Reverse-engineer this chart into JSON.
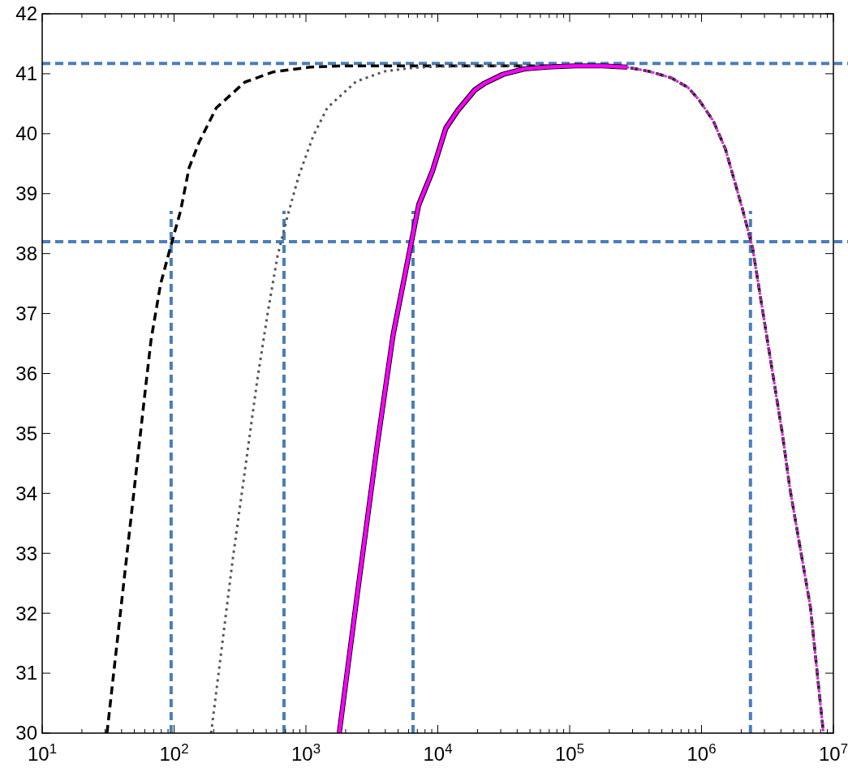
{
  "chart_data": {
    "type": "line",
    "log": "x",
    "grid": false,
    "marker": "none",
    "xlim": [
      10,
      10000000
    ],
    "ylim": [
      30,
      42
    ],
    "xticks": [
      {
        "value": 10,
        "label": "10$^{1}$"
      },
      {
        "value": 20,
        "label": null
      },
      {
        "value": 30,
        "label": null
      },
      {
        "value": 40,
        "label": null
      },
      {
        "value": 50,
        "label": null
      },
      {
        "value": 60,
        "label": null
      },
      {
        "value": 70,
        "label": null
      },
      {
        "value": 80,
        "label": null
      },
      {
        "value": 90,
        "label": null
      },
      {
        "value": 100,
        "label": "10$^{2}$"
      },
      {
        "value": 200,
        "label": null
      },
      {
        "value": 300,
        "label": null
      },
      {
        "value": 400,
        "label": null
      },
      {
        "value": 500,
        "label": null
      },
      {
        "value": 600,
        "label": null
      },
      {
        "value": 700,
        "label": null
      },
      {
        "value": 800,
        "label": null
      },
      {
        "value": 900,
        "label": null
      },
      {
        "value": 1000,
        "label": "10$^{3}$"
      },
      {
        "value": 2000,
        "label": null
      },
      {
        "value": 3000,
        "label": null
      },
      {
        "value": 4000,
        "label": null
      },
      {
        "value": 5000,
        "label": null
      },
      {
        "value": 6000,
        "label": null
      },
      {
        "value": 7000,
        "label": null
      },
      {
        "value": 8000,
        "label": null
      },
      {
        "value": 9000,
        "label": null
      },
      {
        "value": 10000,
        "label": "10$^{4}$"
      },
      {
        "value": 20000,
        "label": null
      },
      {
        "value": 30000,
        "label": null
      },
      {
        "value": 40000,
        "label": null
      },
      {
        "value": 50000,
        "label": null
      },
      {
        "value": 60000,
        "label": null
      },
      {
        "value": 70000,
        "label": null
      },
      {
        "value": 80000,
        "label": null
      },
      {
        "value": 90000,
        "label": null
      },
      {
        "value": 100000,
        "label": "10$^{5}$"
      },
      {
        "value": 200000,
        "label": null
      },
      {
        "value": 300000,
        "label": null
      },
      {
        "value": 400000,
        "label": null
      },
      {
        "value": 500000,
        "label": null
      },
      {
        "value": 600000,
        "label": null
      },
      {
        "value": 700000,
        "label": null
      },
      {
        "value": 800000,
        "label": null
      },
      {
        "value": 900000,
        "label": null
      },
      {
        "value": 1000000,
        "label": "10$^{6}$"
      },
      {
        "value": 2000000,
        "label": null
      },
      {
        "value": 3000000,
        "label": null
      },
      {
        "value": 4000000,
        "label": null
      },
      {
        "value": 5000000,
        "label": null
      },
      {
        "value": 6000000,
        "label": null
      },
      {
        "value": 7000000,
        "label": null
      },
      {
        "value": 8000000,
        "label": null
      },
      {
        "value": 9000000,
        "label": null
      },
      {
        "value": 10000000,
        "label": "10$^{7}$"
      }
    ],
    "yticks": [
      30,
      31,
      32,
      33,
      34,
      35,
      36,
      37,
      38,
      39,
      40,
      41,
      42
    ],
    "ref_lines": [
      {
        "axis": "y",
        "value": 41.17,
        "color": "#4a7ebb",
        "line_style": "dashed"
      },
      {
        "axis": "y",
        "value": 38.2,
        "color": "#4a7ebb",
        "line_style": "dashed"
      },
      {
        "axis": "x",
        "value": 95,
        "color": "#4a7ebb",
        "line_style": "dashed"
      },
      {
        "axis": "x",
        "value": 682,
        "color": "#4a7ebb",
        "line_style": "dashed"
      },
      {
        "axis": "x",
        "value": 6490,
        "color": "#4a7ebb",
        "line_style": "dashed"
      },
      {
        "axis": "x",
        "value": 2350000,
        "color": "#4a7ebb",
        "line_style": "dashed"
      }
    ],
    "series": [
      {
        "color": "#000000",
        "line_style": "dashed",
        "x": [
          31,
          44,
          61,
          67,
          79,
          94,
          112,
          130,
          155,
          209,
          344,
          566,
          1070,
          1860,
          10000,
          110000,
          180000,
          270000,
          400000,
          590000,
          790000,
          960000,
          1230000,
          1520000,
          2040000,
          2440000,
          4100000,
          4680000,
          6700000,
          8400000
        ],
        "values": [
          30,
          33,
          35.79,
          36.57,
          37.49,
          38.11,
          38.71,
          39.43,
          39.86,
          40.43,
          40.86,
          41.03,
          41.11,
          41.13,
          41.13,
          41.13,
          41.13,
          41.11,
          41.04,
          40.93,
          40.77,
          40.56,
          40.21,
          39.74,
          38.75,
          38.09,
          35,
          34.08,
          32.1,
          30
        ]
      },
      {
        "color": "#555555",
        "line_style": "dotted",
        "x": [
          191,
          279,
          427,
          513,
          609,
          724,
          881,
          1135,
          1450,
          2400,
          3940,
          6470,
          10000,
          30000,
          110000,
          180000,
          270000,
          400000,
          590000,
          790000,
          960000,
          1230000,
          1520000,
          2040000,
          2440000,
          4100000,
          4680000,
          6700000,
          8400000
        ],
        "values": [
          30,
          32.91,
          35.88,
          37.01,
          37.96,
          38.62,
          39.29,
          39.96,
          40.43,
          40.87,
          41.04,
          41.1,
          41.12,
          41.13,
          41.13,
          41.13,
          41.11,
          41.04,
          40.93,
          40.77,
          40.56,
          40.21,
          39.74,
          38.75,
          38.09,
          35,
          34.08,
          32.1,
          30
        ]
      },
      {
        "color": "#ff00ff",
        "line_style": "solid",
        "x": [
          1790,
          2440,
          3470,
          4580,
          5560,
          7160,
          9120,
          11500,
          14200,
          19100,
          22600,
          31300,
          45200,
          67000,
          110000,
          180000,
          270000
        ],
        "values": [
          30,
          32.28,
          34.8,
          36.64,
          37.58,
          38.81,
          39.38,
          40.09,
          40.39,
          40.73,
          40.84,
          40.99,
          41.08,
          41.11,
          41.13,
          41.13,
          41.11
        ]
      },
      {
        "color": "#ff00ff",
        "line_style": "dotted",
        "x": [
          270000,
          400000,
          590000,
          790000,
          960000,
          1230000,
          1520000,
          2040000,
          2440000,
          4100000,
          4680000,
          6700000,
          8400000
        ],
        "values": [
          41.11,
          41.04,
          40.93,
          40.77,
          40.56,
          40.21,
          39.74,
          38.75,
          38.09,
          35,
          34.08,
          32.1,
          30
        ]
      }
    ]
  }
}
